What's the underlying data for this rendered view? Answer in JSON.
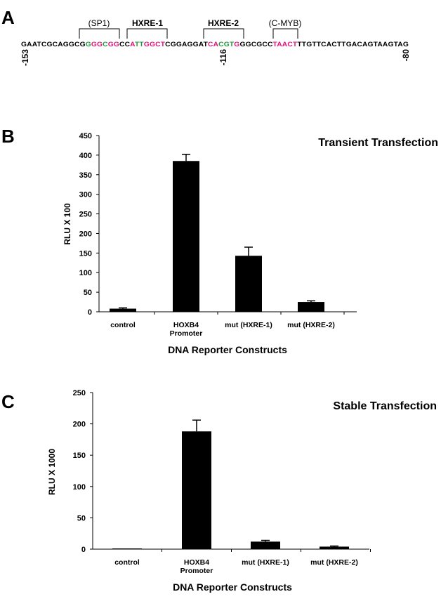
{
  "panel_a": {
    "letter": "A",
    "sequence_segments": [
      {
        "text": "GAATCGCAGGCG",
        "color": "#000000"
      },
      {
        "text": "G",
        "color": "#1f9a3a"
      },
      {
        "text": "GG",
        "color": "#e0147a"
      },
      {
        "text": "C",
        "color": "#1f9a3a"
      },
      {
        "text": "GG",
        "color": "#e0147a"
      },
      {
        "text": "CC",
        "color": "#000000"
      },
      {
        "text": "A",
        "color": "#e0147a"
      },
      {
        "text": "TT",
        "color": "#1f9a3a"
      },
      {
        "text": "GGCT",
        "color": "#e0147a"
      },
      {
        "text": "CGGAGGAT",
        "color": "#000000"
      },
      {
        "text": "CA",
        "color": "#e0147a"
      },
      {
        "text": "CGT",
        "color": "#1f9a3a"
      },
      {
        "text": "G",
        "color": "#e0147a"
      },
      {
        "text": "GGCGCC",
        "color": "#000000"
      },
      {
        "text": "TAACT",
        "color": "#e0147a"
      },
      {
        "text": "TTGTTCACTTGACAGTAAGTAG",
        "color": "#000000"
      }
    ],
    "sites": [
      {
        "label": "(SP1)",
        "bold": false
      },
      {
        "label": "HXRE-1",
        "bold": true
      },
      {
        "label": "HXRE-2",
        "bold": true
      },
      {
        "label": "(C-MYB)",
        "bold": false
      }
    ],
    "positions": [
      "-153",
      "-116",
      "-80"
    ]
  },
  "chart_data": [
    {
      "panel": "B",
      "type": "bar",
      "title": "Transient Transfection",
      "xlabel": "DNA Reporter Constructs",
      "ylabel": "RLU  X 100",
      "categories": [
        "control",
        "HOXB4\nPromoter",
        "mut (HXRE-1)",
        "mut (HXRE-2)"
      ],
      "values": [
        8,
        385,
        143,
        25
      ],
      "errors": [
        2,
        17,
        22,
        3
      ],
      "ylim": [
        0,
        450
      ],
      "yticks": [
        0,
        50,
        100,
        150,
        200,
        250,
        300,
        350,
        400,
        450
      ],
      "bar_color": "#000000",
      "grid": false,
      "legend": "none"
    },
    {
      "panel": "C",
      "type": "bar",
      "title": "Stable Transfection",
      "xlabel": "DNA Reporter Constructs",
      "ylabel": "RLU X 1000",
      "categories": [
        "control",
        "HOXB4\nPromoter",
        "mut (HXRE-1)",
        "mut (HXRE-2)"
      ],
      "values": [
        0,
        188,
        12,
        4
      ],
      "errors": [
        0,
        18,
        2,
        1
      ],
      "ylim": [
        0,
        250
      ],
      "yticks": [
        0,
        50,
        100,
        150,
        200,
        250
      ],
      "bar_color": "#000000",
      "grid": false,
      "legend": "none"
    }
  ]
}
